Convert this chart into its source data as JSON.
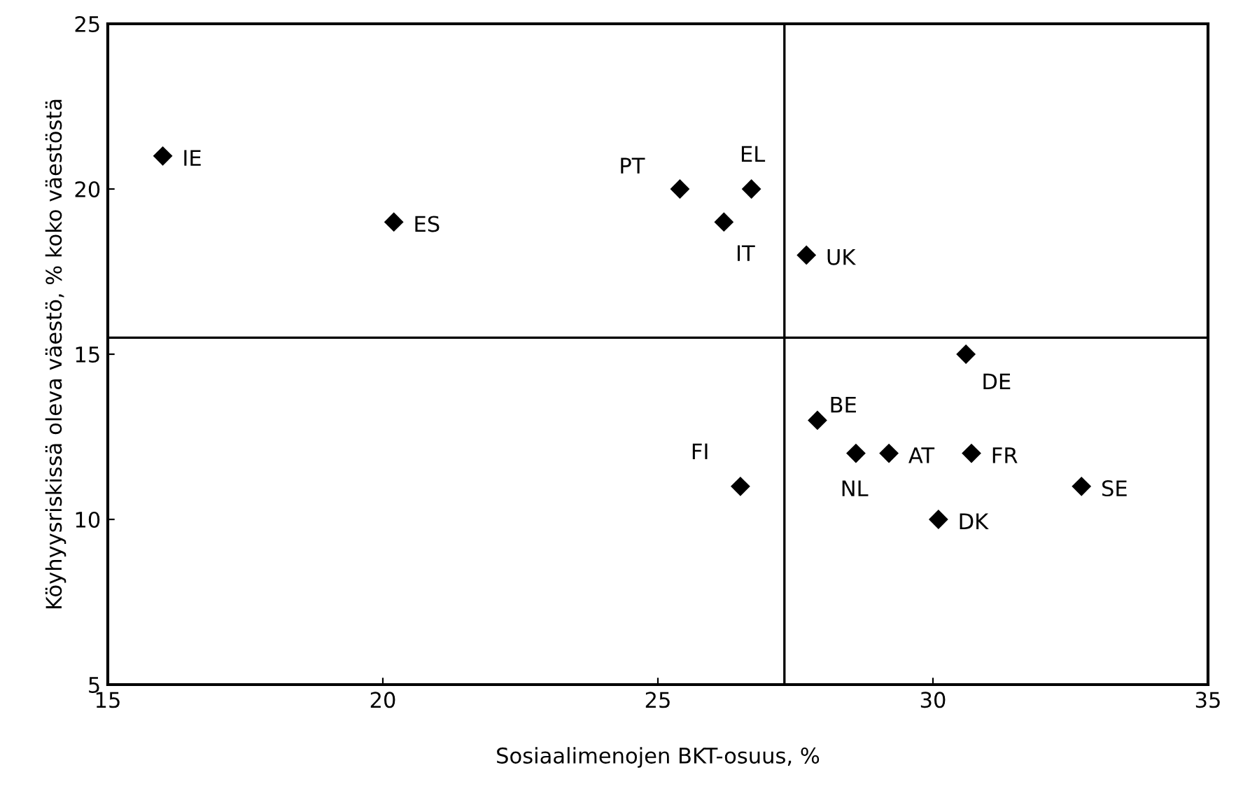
{
  "chart_data": {
    "type": "scatter",
    "xlabel": "Sosiaalimenojen BKT-osuus, %",
    "ylabel": "Köyhyysriskissä oleva väestö, % koko väestöstä",
    "series": [
      {
        "color": "#000000",
        "x": [
          16.0,
          20.2,
          25.4,
          26.7,
          26.2,
          27.7,
          30.6,
          27.9,
          28.6,
          29.2,
          30.7,
          26.5,
          30.1,
          32.7
        ],
        "values": [
          21,
          19,
          20,
          20,
          19,
          18,
          15,
          13,
          12,
          12,
          12,
          11,
          10,
          11
        ]
      }
    ],
    "annotations": [
      {
        "text": "IE",
        "x": 16.0,
        "y": 21
      },
      {
        "text": "ES",
        "x": 20.2,
        "y": 19
      },
      {
        "text": "PT",
        "x": 25.4,
        "y": 20
      },
      {
        "text": "EL",
        "x": 26.7,
        "y": 20
      },
      {
        "text": "IT",
        "x": 26.2,
        "y": 19
      },
      {
        "text": "UK",
        "x": 27.7,
        "y": 18
      },
      {
        "text": "DE",
        "x": 30.6,
        "y": 15
      },
      {
        "text": "BE",
        "x": 27.9,
        "y": 13
      },
      {
        "text": "NL",
        "x": 28.6,
        "y": 12
      },
      {
        "text": "AT",
        "x": 29.2,
        "y": 12
      },
      {
        "text": "FR",
        "x": 30.7,
        "y": 12
      },
      {
        "text": "FI",
        "x": 26.5,
        "y": 11
      },
      {
        "text": "DK",
        "x": 30.1,
        "y": 10
      },
      {
        "text": "SE",
        "x": 32.7,
        "y": 11
      }
    ],
    "ref_lines": [
      {
        "axis": "x",
        "value": 27.3,
        "color": "#000000"
      },
      {
        "axis": "y",
        "value": 15.5,
        "color": "#000000"
      }
    ],
    "xlim": [
      15,
      35
    ],
    "xticks": [
      15,
      20,
      25,
      30,
      35
    ],
    "ylim": [
      5,
      25
    ],
    "yticks": [
      5,
      10,
      15,
      20,
      25
    ],
    "marker": "diamond",
    "grid": false,
    "legend": false
  }
}
